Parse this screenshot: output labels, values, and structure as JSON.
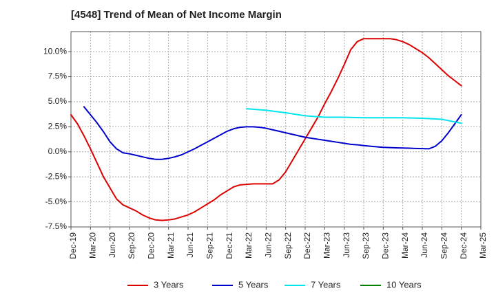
{
  "chart_data": {
    "type": "line",
    "title": "[4548]  Trend of Mean of Net Income Margin",
    "xlabel": "",
    "ylabel": "",
    "x_ticks": [
      "Dec-19",
      "Mar-20",
      "Jun-20",
      "Sep-20",
      "Dec-20",
      "Mar-21",
      "Jun-21",
      "Sep-21",
      "Dec-21",
      "Mar-22",
      "Jun-22",
      "Sep-22",
      "Dec-22",
      "Mar-23",
      "Jun-23",
      "Sep-23",
      "Dec-23",
      "Mar-24",
      "Jun-24",
      "Sep-24",
      "Dec-24",
      "Mar-25"
    ],
    "y_ticks": [
      "10.0%",
      "7.5%",
      "5.0%",
      "2.5%",
      "0.0%",
      "-2.5%",
      "-5.0%",
      "-7.5%"
    ],
    "y_tick_values": [
      10,
      7.5,
      5,
      2.5,
      0,
      -2.5,
      -5,
      -7.5
    ],
    "ylim": [
      -7.5,
      12
    ],
    "grid": true,
    "legend_position": "bottom",
    "series": [
      {
        "name": "3 Years",
        "color": "#dd0000",
        "x": [
          "Dec-19",
          "Jan-20",
          "Feb-20",
          "Mar-20",
          "Apr-20",
          "May-20",
          "Jun-20",
          "Jul-20",
          "Aug-20",
          "Sep-20",
          "Oct-20",
          "Nov-20",
          "Dec-20",
          "Jan-21",
          "Feb-21",
          "Mar-21",
          "Apr-21",
          "May-21",
          "Jun-21",
          "Jul-21",
          "Aug-21",
          "Sep-21",
          "Oct-21",
          "Nov-21",
          "Dec-21",
          "Jan-22",
          "Feb-22",
          "Mar-22",
          "Apr-22",
          "May-22",
          "Jun-22",
          "Jul-22",
          "Aug-22",
          "Sep-22",
          "Oct-22",
          "Nov-22",
          "Dec-22",
          "Jan-23",
          "Feb-23",
          "Mar-23",
          "Apr-23",
          "May-23",
          "Jun-23",
          "Jul-23",
          "Aug-23",
          "Sep-23",
          "Oct-23",
          "Nov-23",
          "Dec-23",
          "Jan-24",
          "Feb-24",
          "Mar-24",
          "Apr-24",
          "May-24",
          "Jun-24",
          "Jul-24",
          "Aug-24",
          "Sep-24",
          "Oct-24",
          "Nov-24",
          "Dec-24"
        ],
        "values": [
          3.7,
          2.8,
          1.6,
          0.3,
          -1.1,
          -2.5,
          -3.6,
          -4.7,
          -5.3,
          -5.6,
          -5.9,
          -6.3,
          -6.6,
          -6.8,
          -6.85,
          -6.8,
          -6.7,
          -6.5,
          -6.3,
          -6.0,
          -5.6,
          -5.2,
          -4.8,
          -4.3,
          -3.9,
          -3.5,
          -3.3,
          -3.25,
          -3.2,
          -3.2,
          -3.2,
          -3.2,
          -2.8,
          -2.0,
          -0.9,
          0.2,
          1.3,
          2.4,
          3.5,
          4.8,
          6.0,
          7.3,
          8.7,
          10.2,
          11.0,
          11.3,
          11.3,
          11.3,
          11.3,
          11.3,
          11.2,
          11.0,
          10.7,
          10.3,
          9.9,
          9.4,
          8.8,
          8.2,
          7.6,
          7.1,
          6.6
        ]
      },
      {
        "name": "5 Years",
        "color": "#0000cc",
        "x": [
          "Dec-19",
          "Jan-20",
          "Feb-20",
          "Mar-20",
          "Apr-20",
          "May-20",
          "Jun-20",
          "Jul-20",
          "Aug-20",
          "Sep-20",
          "Oct-20",
          "Nov-20",
          "Dec-20",
          "Jan-21",
          "Feb-21",
          "Mar-21",
          "Apr-21",
          "May-21",
          "Jun-21",
          "Jul-21",
          "Aug-21",
          "Sep-21",
          "Oct-21",
          "Nov-21",
          "Dec-21",
          "Jan-22",
          "Feb-22",
          "Mar-22",
          "Apr-22",
          "May-22",
          "Jun-22",
          "Jul-22",
          "Aug-22",
          "Sep-22",
          "Oct-22",
          "Nov-22",
          "Dec-22",
          "Jan-23",
          "Feb-23",
          "Mar-23",
          "Apr-23",
          "May-23",
          "Jun-23",
          "Jul-23",
          "Aug-23",
          "Sep-23",
          "Oct-23",
          "Nov-23",
          "Dec-23",
          "Jan-24",
          "Feb-24",
          "Mar-24",
          "Apr-24",
          "May-24",
          "Jun-24",
          "Jul-24",
          "Aug-24",
          "Sep-24",
          "Oct-24",
          "Nov-24",
          "Dec-24"
        ],
        "values": [
          null,
          null,
          4.5,
          3.7,
          2.9,
          2.0,
          1.0,
          0.3,
          -0.1,
          -0.2,
          -0.35,
          -0.5,
          -0.65,
          -0.75,
          -0.75,
          -0.65,
          -0.5,
          -0.3,
          0.0,
          0.3,
          0.65,
          1.0,
          1.35,
          1.7,
          2.05,
          2.3,
          2.45,
          2.5,
          2.5,
          2.45,
          2.35,
          2.2,
          2.05,
          1.9,
          1.75,
          1.6,
          1.45,
          1.35,
          1.25,
          1.15,
          1.05,
          0.95,
          0.85,
          0.75,
          0.7,
          0.62,
          0.56,
          0.5,
          0.45,
          0.42,
          0.4,
          0.38,
          0.36,
          0.34,
          0.32,
          0.3,
          0.55,
          1.1,
          1.9,
          2.8,
          3.7
        ]
      },
      {
        "name": "7 Years",
        "color": "#00e5ee",
        "x": [
          "Mar-22",
          "Jun-22",
          "Sep-22",
          "Dec-22",
          "Mar-23",
          "Jun-23",
          "Sep-23",
          "Dec-23",
          "Mar-24",
          "Jun-24",
          "Sep-24",
          "Dec-24"
        ],
        "values": [
          4.3,
          4.15,
          3.9,
          3.6,
          3.45,
          3.45,
          3.4,
          3.4,
          3.4,
          3.35,
          3.25,
          2.85
        ]
      },
      {
        "name": "10 Years",
        "color": "#008000",
        "x": [],
        "values": []
      }
    ]
  }
}
